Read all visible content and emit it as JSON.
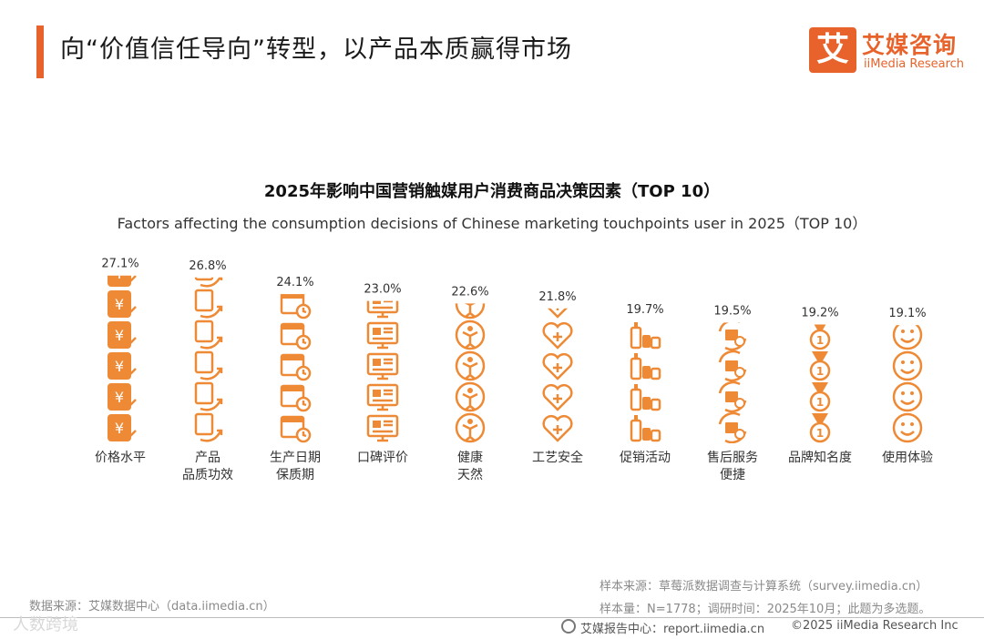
{
  "header": {
    "title": "向“价值信任导向”转型，以产品本质赢得市场",
    "logo_cn": "艾媒咨询",
    "logo_en": "iiMedia Research",
    "logo_mark": "艾"
  },
  "colors": {
    "accent": "#e8632b",
    "icon": "#ee8a35"
  },
  "chart_data": {
    "type": "bar",
    "title": "2025年影响中国营销触媒用户消费商品决策因素（TOP 10）",
    "subtitle": "Factors affecting the consumption decisions of Chinese marketing touchpoints user in 2025（TOP 10）",
    "categories": [
      [
        "价格水平"
      ],
      [
        "产品",
        "品质功效"
      ],
      [
        "生产日期",
        "保质期"
      ],
      [
        "口碑评价"
      ],
      [
        "健康",
        "天然"
      ],
      [
        "工艺安全"
      ],
      [
        "促销活动"
      ],
      [
        "售后服务",
        "便捷"
      ],
      [
        "品牌知名度"
      ],
      [
        "使用体验"
      ]
    ],
    "values": [
      27.1,
      26.8,
      24.1,
      23.0,
      22.6,
      21.8,
      19.7,
      19.5,
      19.2,
      19.1
    ],
    "value_labels": [
      "27.1%",
      "26.8%",
      "24.1%",
      "23.0%",
      "22.6%",
      "21.8%",
      "19.7%",
      "19.5%",
      "19.2%",
      "19.1%"
    ],
    "icons": [
      "yuan-card-icon",
      "product-box-icon",
      "calendar-clock-icon",
      "monitor-review-icon",
      "health-person-icon",
      "heart-plus-icon",
      "bottles-icon",
      "service-box-icon",
      "medal-icon",
      "smiley-icon"
    ],
    "ylabel": "",
    "xlabel": "",
    "grid": false,
    "legend": "none"
  },
  "footer": {
    "data_source": "数据来源：艾媒数据中心（data.iimedia.cn）",
    "sample_source": "样本来源：草莓派数据调查与计算系统（survey.iimedia.cn）",
    "sample_size": "样本量：N=1778；调研时间：2025年10月；此题为多选题。",
    "report_center": "艾媒报告中心：report.iimedia.cn",
    "copyright": "©2025  iiMedia Research  Inc",
    "watermark": "人数跨境"
  }
}
